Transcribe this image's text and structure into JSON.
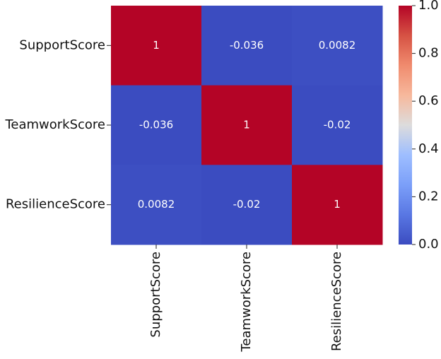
{
  "chart_data": {
    "type": "heatmap",
    "x": [
      "SupportScore",
      "TeamworkScore",
      "ResilienceScore"
    ],
    "y": [
      "SupportScore",
      "TeamworkScore",
      "ResilienceScore"
    ],
    "values": [
      [
        1,
        -0.036,
        0.0082
      ],
      [
        -0.036,
        1,
        -0.02
      ],
      [
        0.0082,
        -0.02,
        1
      ]
    ],
    "colormap": "coolwarm",
    "zlim": [
      0,
      1
    ],
    "zticks": [
      {
        "value": 0,
        "label": "0.0"
      },
      0.2,
      0.4,
      0.6,
      0.8,
      {
        "value": 1,
        "label": "1.0"
      }
    ]
  }
}
